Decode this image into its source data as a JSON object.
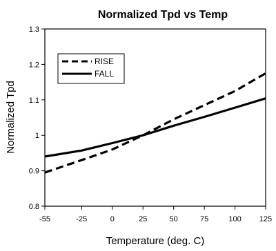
{
  "chart_data": {
    "type": "line",
    "title": "Normalized Tpd vs Temp",
    "xlabel": "Temperature (deg. C)",
    "ylabel": "Normalized Tpd",
    "xlim": [
      -55,
      125
    ],
    "ylim": [
      0.8,
      1.3
    ],
    "x_ticks": [
      "-55",
      "-25",
      "0",
      "25",
      "50",
      "75",
      "100",
      "125"
    ],
    "y_ticks": [
      "0.8",
      "0.9",
      "1",
      "1.1",
      "1.2",
      "1.3"
    ],
    "grid": false,
    "legend_position": "top-left",
    "series": [
      {
        "name": "RISE",
        "style": "dashed",
        "color": "#000000",
        "x": [
          -55,
          -25,
          0,
          25,
          50,
          75,
          100,
          125
        ],
        "y": [
          0.895,
          0.93,
          0.96,
          1.0,
          1.045,
          1.085,
          1.125,
          1.175
        ]
      },
      {
        "name": "FALL",
        "style": "solid",
        "color": "#000000",
        "x": [
          -55,
          -25,
          0,
          25,
          50,
          75,
          100,
          125
        ],
        "y": [
          0.94,
          0.957,
          0.978,
          1.0,
          1.027,
          1.052,
          1.078,
          1.104
        ]
      }
    ]
  }
}
